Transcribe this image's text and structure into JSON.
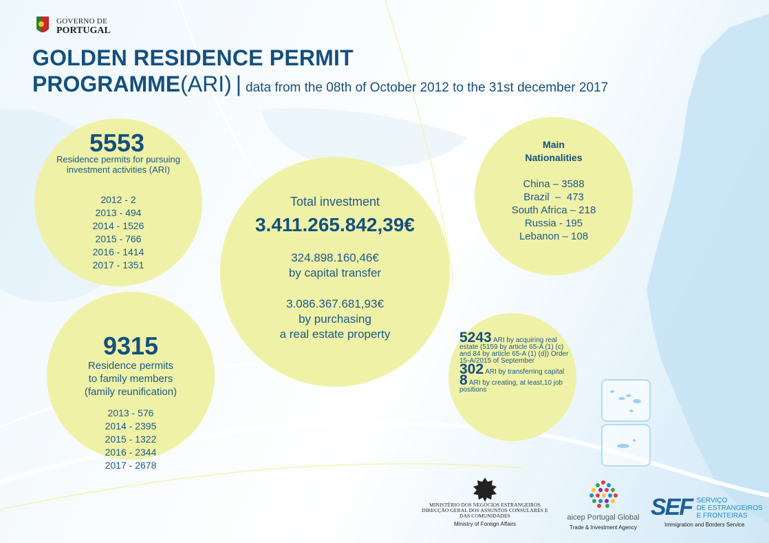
{
  "header": {
    "logo_line1": "GOVERNO DE",
    "logo_line2": "PORTUGAL",
    "title_line1": "GOLDEN RESIDENCE PERMIT",
    "title_line2_bold": "PROGRAMME",
    "title_line2_paren": "(ARI)",
    "title_separator": "|",
    "subtitle": "data from the 08th of October 2012 to the 31st december 2017"
  },
  "ari_permits": {
    "total": "5553",
    "description": "Residence permits for pursuing investment activities (ARI)",
    "by_year": [
      "2012 - 2",
      "2013 - 494",
      "2014 - 1526",
      "2015 - 766",
      "2016 - 1414",
      "2017 - 1351"
    ]
  },
  "family_permits": {
    "total": "9315",
    "description_lines": [
      "Residence permits",
      "to family members",
      "(family reunification)"
    ],
    "by_year": [
      "2013 - 576",
      "2014 - 2395",
      "2015 - 1322",
      "2016 - 2344",
      "2017 - 2678"
    ]
  },
  "investment": {
    "label": "Total investment",
    "total": "3.411.265.842,39€",
    "capital_amount": "324.898.160,46€",
    "capital_label": "by capital transfer",
    "real_estate_amount": "3.086.367.681,93€",
    "real_estate_label_1": "by purchasing",
    "real_estate_label_2": "a real estate property"
  },
  "nationalities": {
    "title_1": "Main",
    "title_2": "Nationalities",
    "items": [
      "China – 3588",
      "Brazil  –  473",
      "South Africa – 218",
      "Russia - 195",
      "Lebanon – 108"
    ]
  },
  "breakdown": {
    "real_estate_num": "5243",
    "real_estate_text": "ARI by acquiring real estate (5159 by article 65-A (1) (c) and 84 by article 65-A (1) (d)) Order 15-A/2015 of September",
    "capital_num": "302",
    "capital_text": "ARI by transferring capital",
    "jobs_num": "8",
    "jobs_text": "ARI by creating, at least,10 job positions"
  },
  "footer": {
    "ministry_line1": "MINISTÉRIO DOS NEGÓCIOS ESTRANGEIROS",
    "ministry_line2": "DIRECÇÃO GERAL DOS ASSUNTOS CONSULARES E",
    "ministry_line3": "DAS COMUNIDADES",
    "ministry_en": "Ministry of Foreign Affairs",
    "aicep_name": "aicep Portugal Global",
    "aicep_en": "Trade & Investment Agency",
    "sef_logo": "SEF",
    "sef_line1": "SERVIÇO",
    "sef_line2": "DE ESTRANGEIROS",
    "sef_line3": "E FRONTEIRAS",
    "sef_en": "Immigration and Borders Service"
  },
  "colors": {
    "title_blue": "#144f7e",
    "text_blue": "#1c5a8a",
    "circle_yellow": "#eef0a2",
    "map_blue": "#c6e3f5"
  }
}
